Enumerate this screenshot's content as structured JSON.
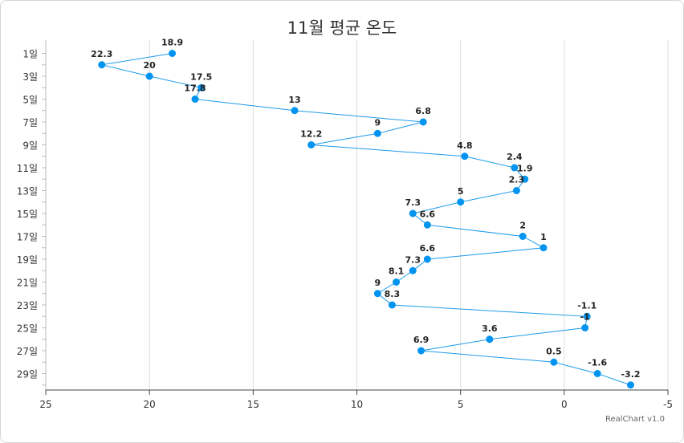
{
  "chart_data": {
    "type": "line",
    "title": "11월 평균 온도",
    "credit": "RealChart v1.0",
    "orientation": "horizontal",
    "xlim": [
      25,
      -5
    ],
    "x_reversed": true,
    "x_ticks": [
      "25",
      "20",
      "15",
      "10",
      "5",
      "0",
      "-5"
    ],
    "x_tick_values": [
      25,
      20,
      15,
      10,
      5,
      0,
      -5
    ],
    "categories": [
      "1일",
      "2일",
      "3일",
      "4일",
      "5일",
      "6일",
      "7일",
      "8일",
      "9일",
      "10일",
      "11일",
      "12일",
      "13일",
      "14일",
      "15일",
      "16일",
      "17일",
      "18일",
      "19일",
      "20일",
      "21일",
      "22일",
      "23일",
      "24일",
      "25일",
      "26일",
      "27일",
      "28일",
      "29일",
      "30일"
    ],
    "category_labels_shown": [
      "1일",
      "3일",
      "5일",
      "7일",
      "9일",
      "11일",
      "13일",
      "15일",
      "17일",
      "19일",
      "21일",
      "23일",
      "25일",
      "27일",
      "29일"
    ],
    "values": [
      18.9,
      22.3,
      20,
      17.5,
      17.8,
      13,
      6.8,
      9,
      12.2,
      4.8,
      2.4,
      1.9,
      2.3,
      5,
      7.3,
      6.6,
      2,
      1,
      6.6,
      7.3,
      8.1,
      9,
      8.3,
      -1.1,
      -1,
      3.6,
      6.9,
      0.5,
      -1.6,
      -3.2
    ],
    "vertical_grid": true,
    "line_color": "#1d9bea",
    "marker_color": "#0094f0",
    "grid_color": "#dddddd"
  }
}
